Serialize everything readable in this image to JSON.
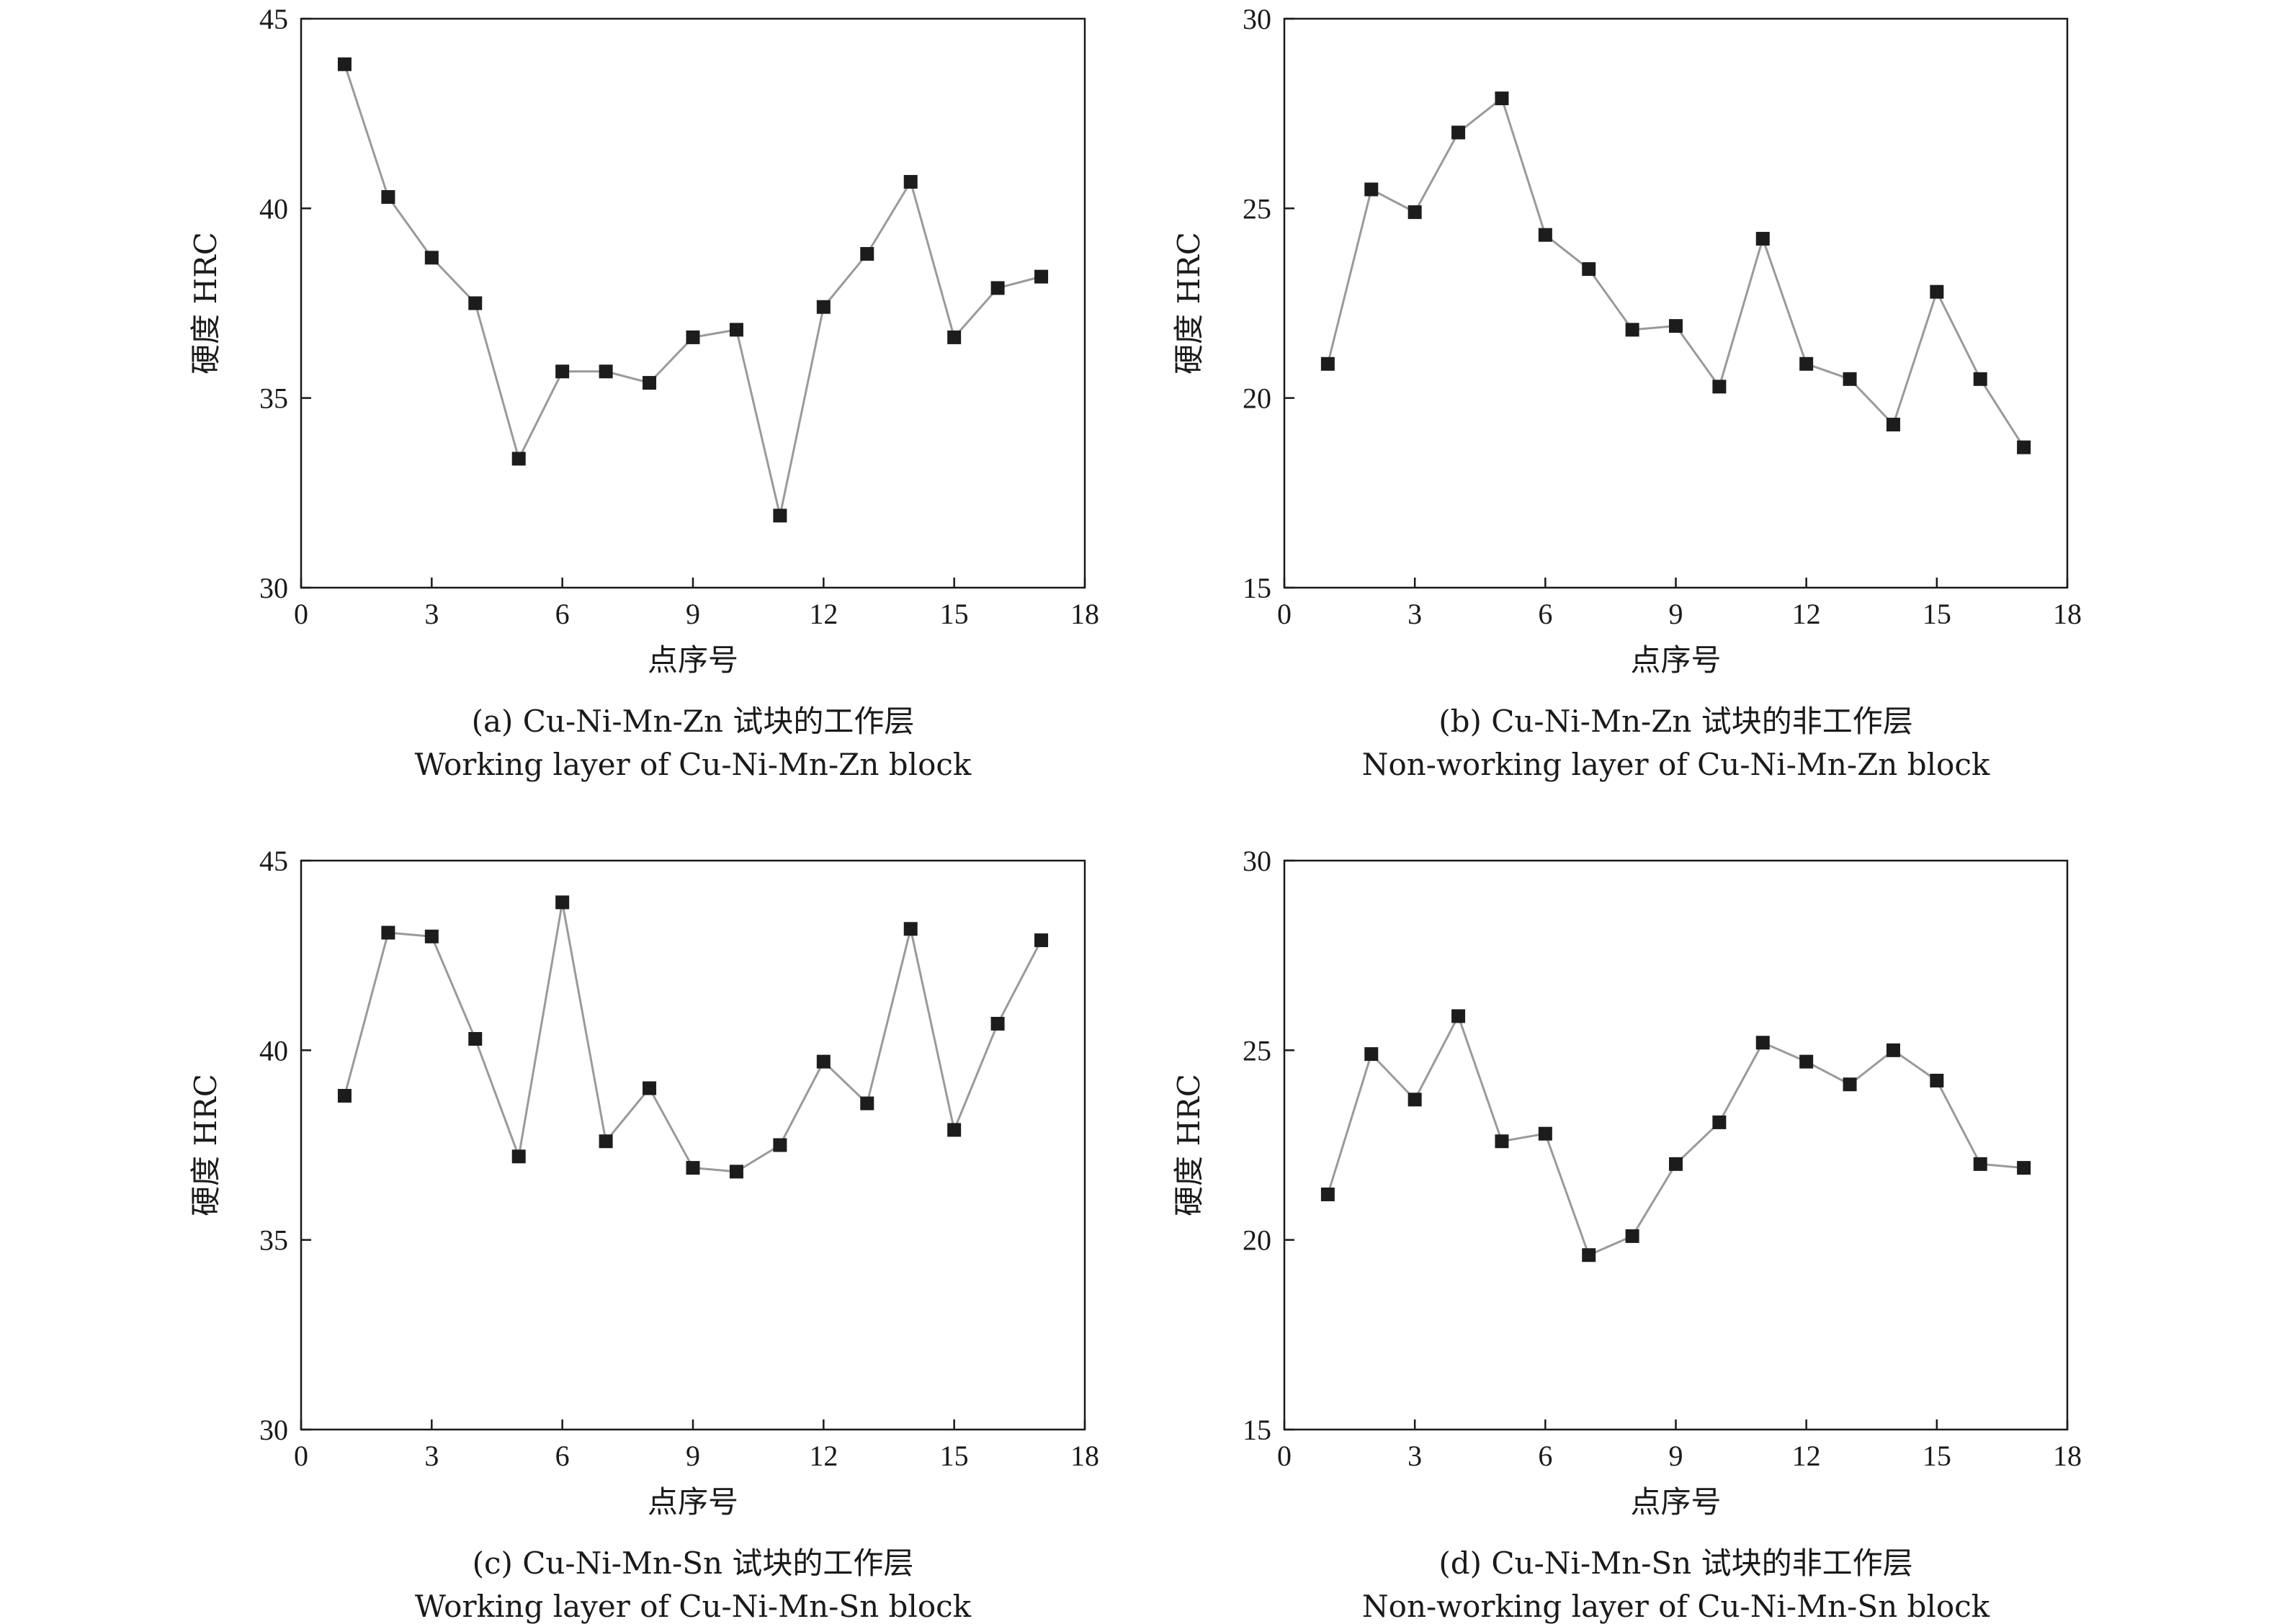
{
  "chart_data": [
    {
      "type": "line",
      "xlabel": "点序号",
      "ylabel": "硬度 HRC",
      "caption_cn": "(a) Cu-Ni-Mn-Zn 试块的工作层",
      "caption_en": "Working layer of Cu-Ni-Mn-Zn block",
      "xlim": [
        0,
        18
      ],
      "ylim": [
        30,
        45
      ],
      "xticks": [
        "0",
        "3",
        "6",
        "9",
        "12",
        "15",
        "18"
      ],
      "yticks": [
        "30",
        "35",
        "40",
        "45"
      ],
      "grid": false,
      "x": [
        1,
        2,
        3,
        4,
        5,
        6,
        7,
        8,
        9,
        10,
        11,
        12,
        13,
        14,
        15,
        16,
        17
      ],
      "y": [
        43.8,
        40.3,
        38.7,
        37.5,
        33.4,
        35.7,
        35.7,
        35.4,
        36.6,
        36.8,
        31.9,
        37.4,
        38.8,
        40.7,
        36.6,
        37.9,
        38.2
      ],
      "colors": {
        "line": "#9a9a9a",
        "marker": "#1c1c1c"
      }
    },
    {
      "type": "line",
      "xlabel": "点序号",
      "ylabel": "硬度 HRC",
      "caption_cn": "(b) Cu-Ni-Mn-Zn 试块的非工作层",
      "caption_en": "Non-working layer of Cu-Ni-Mn-Zn block",
      "xlim": [
        0,
        18
      ],
      "ylim": [
        15,
        30
      ],
      "xticks": [
        "0",
        "3",
        "6",
        "9",
        "12",
        "15",
        "18"
      ],
      "yticks": [
        "15",
        "20",
        "25",
        "30"
      ],
      "grid": false,
      "x": [
        1,
        2,
        3,
        4,
        5,
        6,
        7,
        8,
        9,
        10,
        11,
        12,
        13,
        14,
        15,
        16,
        17
      ],
      "y": [
        20.9,
        25.5,
        24.9,
        27.0,
        27.9,
        24.3,
        23.4,
        21.8,
        21.9,
        20.3,
        24.2,
        20.9,
        20.5,
        19.3,
        22.8,
        20.5,
        18.7
      ],
      "colors": {
        "line": "#9a9a9a",
        "marker": "#1c1c1c"
      }
    },
    {
      "type": "line",
      "xlabel": "点序号",
      "ylabel": "硬度 HRC",
      "caption_cn": "(c) Cu-Ni-Mn-Sn 试块的工作层",
      "caption_en": "Working layer of Cu-Ni-Mn-Sn block",
      "xlim": [
        0,
        18
      ],
      "ylim": [
        30,
        45
      ],
      "xticks": [
        "0",
        "3",
        "6",
        "9",
        "12",
        "15",
        "18"
      ],
      "yticks": [
        "30",
        "35",
        "40",
        "45"
      ],
      "grid": false,
      "x": [
        1,
        2,
        3,
        4,
        5,
        6,
        7,
        8,
        9,
        10,
        11,
        12,
        13,
        14,
        15,
        16,
        17
      ],
      "y": [
        38.8,
        43.1,
        43.0,
        40.3,
        37.2,
        43.9,
        37.6,
        39.0,
        36.9,
        36.8,
        37.5,
        39.7,
        38.6,
        43.2,
        37.9,
        40.7,
        42.9
      ],
      "colors": {
        "line": "#9a9a9a",
        "marker": "#1c1c1c"
      }
    },
    {
      "type": "line",
      "xlabel": "点序号",
      "ylabel": "硬度 HRC",
      "caption_cn": "(d) Cu-Ni-Mn-Sn 试块的非工作层",
      "caption_en": "Non-working layer of Cu-Ni-Mn-Sn block",
      "xlim": [
        0,
        18
      ],
      "ylim": [
        15,
        30
      ],
      "xticks": [
        "0",
        "3",
        "6",
        "9",
        "12",
        "15",
        "18"
      ],
      "yticks": [
        "15",
        "20",
        "25",
        "30"
      ],
      "grid": false,
      "x": [
        1,
        2,
        3,
        4,
        5,
        6,
        7,
        8,
        9,
        10,
        11,
        12,
        13,
        14,
        15,
        16,
        17
      ],
      "y": [
        21.2,
        24.9,
        23.7,
        25.9,
        22.6,
        22.8,
        19.6,
        20.1,
        22.0,
        23.1,
        25.2,
        24.7,
        24.1,
        25.0,
        24.2,
        22.0,
        21.9
      ],
      "colors": {
        "line": "#9a9a9a",
        "marker": "#1c1c1c"
      }
    }
  ]
}
